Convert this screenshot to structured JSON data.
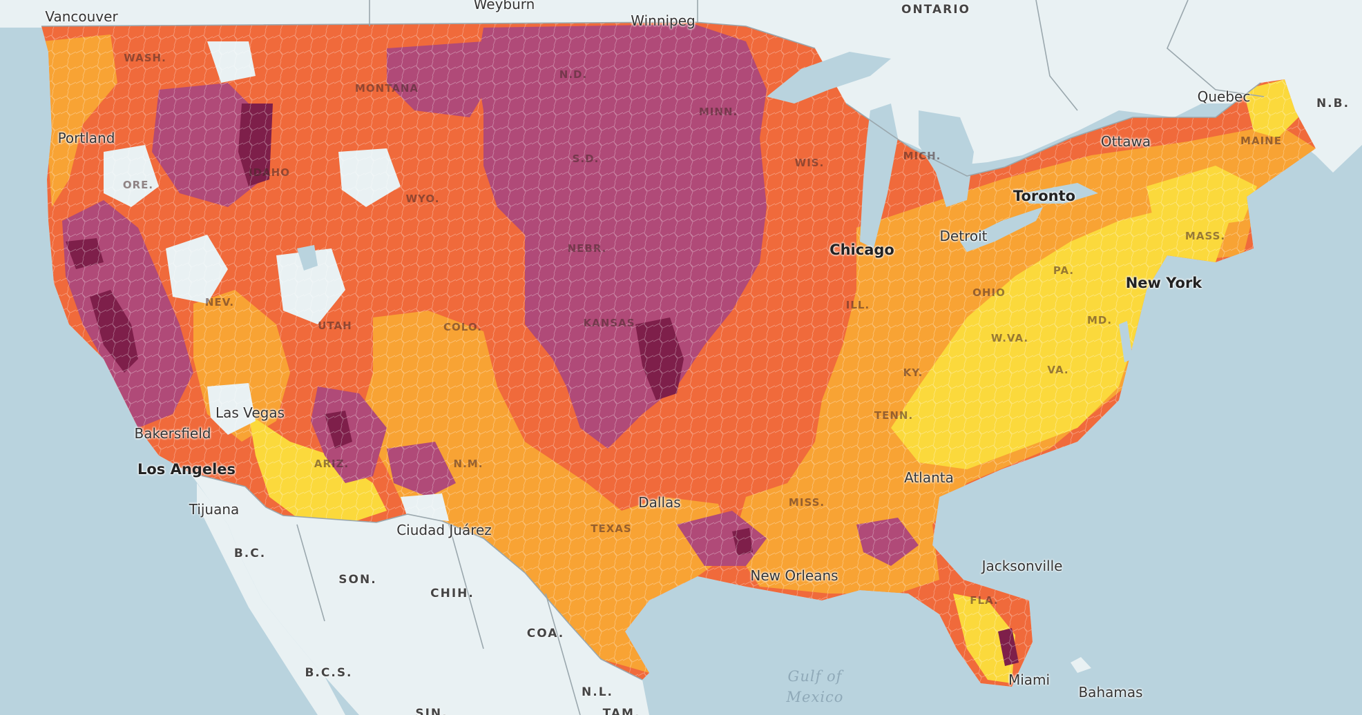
{
  "palette": {
    "water": "#b9d3de",
    "land": "#e9f1f3",
    "yellow": "#fbd93c",
    "light_orange": "#f8a334",
    "orange": "#f06a3b",
    "magenta": "#b04a78",
    "dark_magenta": "#7e1f4a"
  },
  "cities": [
    {
      "id": "vancouver",
      "name": "Vancouver"
    },
    {
      "id": "weyburn",
      "name": "Weyburn"
    },
    {
      "id": "winnipeg",
      "name": "Winnipeg"
    },
    {
      "id": "quebec",
      "name": "Quebec"
    },
    {
      "id": "ottawa",
      "name": "Ottawa"
    },
    {
      "id": "toronto",
      "name": "Toronto"
    },
    {
      "id": "portland",
      "name": "Portland"
    },
    {
      "id": "detroit",
      "name": "Detroit"
    },
    {
      "id": "chicago",
      "name": "Chicago"
    },
    {
      "id": "new-york",
      "name": "New York"
    },
    {
      "id": "las-vegas",
      "name": "Las Vegas"
    },
    {
      "id": "bakersfield",
      "name": "Bakersfield"
    },
    {
      "id": "los-angeles",
      "name": "Los Angeles"
    },
    {
      "id": "tijuana",
      "name": "Tijuana"
    },
    {
      "id": "ciudad-juarez",
      "name": "Ciudad Juárez"
    },
    {
      "id": "dallas",
      "name": "Dallas"
    },
    {
      "id": "atlanta",
      "name": "Atlanta"
    },
    {
      "id": "new-orleans",
      "name": "New Orleans"
    },
    {
      "id": "jacksonville",
      "name": "Jacksonville"
    },
    {
      "id": "miami",
      "name": "Miami"
    },
    {
      "id": "bahamas",
      "name": "Bahamas"
    }
  ],
  "regions": [
    {
      "id": "ontario",
      "name": "ONTARIO"
    },
    {
      "id": "nb",
      "name": "N.B."
    },
    {
      "id": "bc",
      "name": "B.C."
    },
    {
      "id": "son",
      "name": "SON."
    },
    {
      "id": "chih",
      "name": "CHIH."
    },
    {
      "id": "coa",
      "name": "COA."
    },
    {
      "id": "bcs",
      "name": "B.C.S."
    },
    {
      "id": "nl",
      "name": "N.L."
    },
    {
      "id": "sin",
      "name": "SIN."
    },
    {
      "id": "tam",
      "name": "TAM."
    }
  ],
  "states": [
    {
      "id": "wash",
      "name": "WASH."
    },
    {
      "id": "mont",
      "name": "MONTANA"
    },
    {
      "id": "nd",
      "name": "N.D."
    },
    {
      "id": "minn",
      "name": "MINN."
    },
    {
      "id": "ore",
      "name": "ORE."
    },
    {
      "id": "idaho",
      "name": "IDAHO"
    },
    {
      "id": "wyo",
      "name": "WYO."
    },
    {
      "id": "sd",
      "name": "S.D."
    },
    {
      "id": "wis",
      "name": "WIS."
    },
    {
      "id": "mich",
      "name": "MICH."
    },
    {
      "id": "maine",
      "name": "MAINE"
    },
    {
      "id": "nebr",
      "name": "NEBR."
    },
    {
      "id": "nev",
      "name": "NEV."
    },
    {
      "id": "utah",
      "name": "UTAH"
    },
    {
      "id": "colo",
      "name": "COLO."
    },
    {
      "id": "kans",
      "name": "KANSAS"
    },
    {
      "id": "ohio",
      "name": "OHIO"
    },
    {
      "id": "pa",
      "name": "PA."
    },
    {
      "id": "mass",
      "name": "MASS."
    },
    {
      "id": "ill",
      "name": "ILL."
    },
    {
      "id": "md",
      "name": "MD."
    },
    {
      "id": "wva",
      "name": "W.VA."
    },
    {
      "id": "ky",
      "name": "KY."
    },
    {
      "id": "va",
      "name": "VA."
    },
    {
      "id": "tenn",
      "name": "TENN."
    },
    {
      "id": "ariz",
      "name": "ARIZ."
    },
    {
      "id": "nm",
      "name": "N.M."
    },
    {
      "id": "texas",
      "name": "TEXAS"
    },
    {
      "id": "miss",
      "name": "MISS."
    },
    {
      "id": "fla",
      "name": "FLA."
    }
  ],
  "water_labels": [
    {
      "id": "gulf-of-mexico",
      "name": "Gulf of Mexico"
    }
  ]
}
